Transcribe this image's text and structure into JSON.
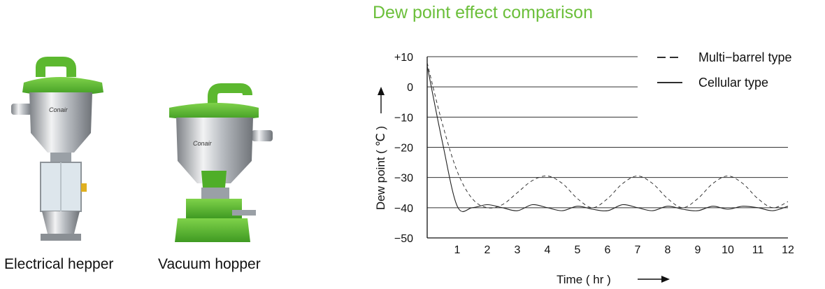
{
  "captions": {
    "electrical": "Electrical hepper",
    "vacuum": "Vacuum hopper"
  },
  "brand_text": "Conair",
  "colors": {
    "accent_green": "#6bbf3a",
    "steel": "#c9ccd0",
    "ink": "#111111"
  },
  "chart_data": {
    "type": "line",
    "title": "Dew point effect comparison",
    "ylabel": "Dew point ( ℃ )",
    "xlabel": "Time ( hr )",
    "xlim": [
      0,
      12
    ],
    "ylim": [
      -50,
      10
    ],
    "x_ticks": [
      "1",
      "2",
      "3",
      "4",
      "5",
      "6",
      "7",
      "8",
      "9",
      "10",
      "11",
      "12"
    ],
    "y_ticks": [
      {
        "value": 10,
        "label": "+10"
      },
      {
        "value": 0,
        "label": "0"
      },
      {
        "value": -10,
        "label": "−10"
      },
      {
        "value": -20,
        "label": "−20"
      },
      {
        "value": -30,
        "label": "−30"
      },
      {
        "value": -40,
        "label": "−40"
      },
      {
        "value": -50,
        "label": "−50"
      }
    ],
    "grid": "horizontal",
    "legend": "top-right",
    "series": [
      {
        "name": "Multi−barrel type",
        "style": "dashed",
        "points": [
          [
            0,
            8
          ],
          [
            0.5,
            -12
          ],
          [
            1,
            -28
          ],
          [
            1.5,
            -37
          ],
          [
            2,
            -40
          ],
          [
            2.5,
            -39
          ],
          [
            3,
            -35
          ],
          [
            3.5,
            -31
          ],
          [
            4,
            -29.5
          ],
          [
            4.5,
            -32
          ],
          [
            5,
            -37
          ],
          [
            5.5,
            -40
          ],
          [
            6,
            -37
          ],
          [
            6.5,
            -32
          ],
          [
            7,
            -29.5
          ],
          [
            7.5,
            -32
          ],
          [
            8,
            -37
          ],
          [
            8.5,
            -40
          ],
          [
            9,
            -37
          ],
          [
            9.5,
            -32
          ],
          [
            10,
            -29.5
          ],
          [
            10.5,
            -32
          ],
          [
            11,
            -37
          ],
          [
            11.5,
            -40
          ],
          [
            12,
            -38
          ]
        ]
      },
      {
        "name": "Cellular type",
        "style": "solid",
        "points": [
          [
            0,
            7
          ],
          [
            0.5,
            -18
          ],
          [
            1,
            -39.5
          ],
          [
            1.5,
            -40
          ],
          [
            2,
            -39
          ],
          [
            2.5,
            -40
          ],
          [
            3,
            -41
          ],
          [
            3.5,
            -39
          ],
          [
            4,
            -40
          ],
          [
            4.5,
            -41
          ],
          [
            5,
            -39.5
          ],
          [
            5.5,
            -40.5
          ],
          [
            6,
            -41
          ],
          [
            6.5,
            -39
          ],
          [
            7,
            -40
          ],
          [
            7.5,
            -41
          ],
          [
            8,
            -39.5
          ],
          [
            8.5,
            -40.5
          ],
          [
            9,
            -41
          ],
          [
            9.5,
            -39.5
          ],
          [
            10,
            -40.5
          ],
          [
            10.5,
            -39.5
          ],
          [
            11,
            -40
          ],
          [
            11.5,
            -41
          ],
          [
            12,
            -39.5
          ]
        ]
      }
    ]
  }
}
